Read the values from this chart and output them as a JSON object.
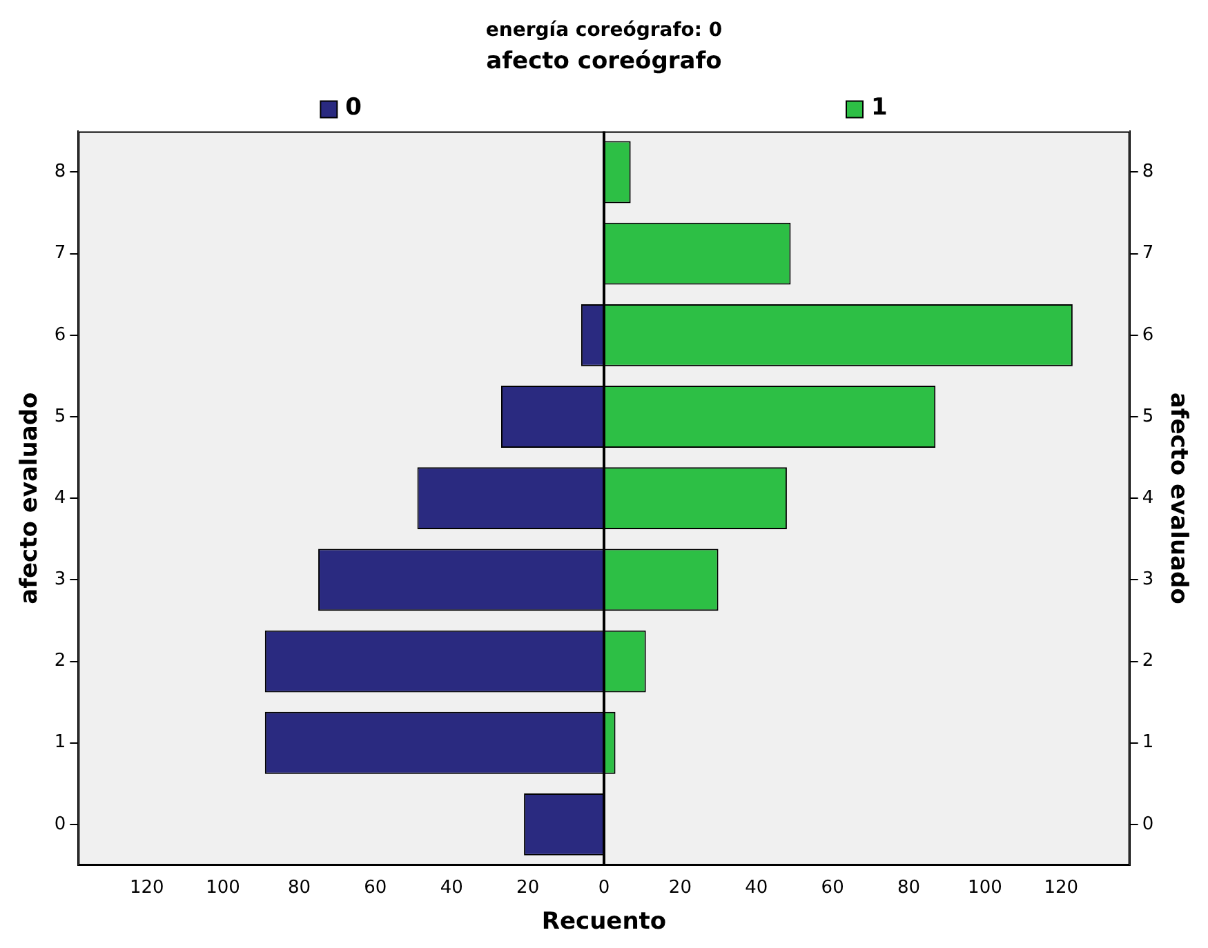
{
  "chart_data": {
    "type": "bar",
    "orientation": "horizontal",
    "stacked": true,
    "title": "energía coreógrafo: 0",
    "subtitle": "afecto coreógrafo",
    "xlabel": "Recuento",
    "ylabel": "afecto evaluado",
    "y2label": "afecto evaluado",
    "categories": [
      "8",
      "7",
      "6",
      "5",
      "4",
      "3",
      "2",
      "1",
      "0"
    ],
    "series": [
      {
        "name": "0",
        "color": "#2a2a80",
        "values": [
          0,
          0,
          -6,
          -27,
          -49,
          -75,
          -89,
          -89,
          -21
        ]
      },
      {
        "name": "1",
        "color": "#2dbf45",
        "values": [
          7,
          49,
          123,
          87,
          48,
          30,
          11,
          3,
          0
        ]
      }
    ],
    "xlim": [
      -138,
      138
    ],
    "xticks": [
      {
        "value": -120,
        "label": "120"
      },
      {
        "value": -100,
        "label": "100"
      },
      {
        "value": -80,
        "label": "80"
      },
      {
        "value": -60,
        "label": "60"
      },
      {
        "value": -40,
        "label": "40"
      },
      {
        "value": -20,
        "label": "20"
      },
      0,
      20,
      40,
      60,
      80,
      100,
      120
    ],
    "ref_lines": [
      {
        "axis": "x",
        "value": 0,
        "color": "#000000"
      }
    ],
    "grid": false,
    "legend": "top"
  }
}
